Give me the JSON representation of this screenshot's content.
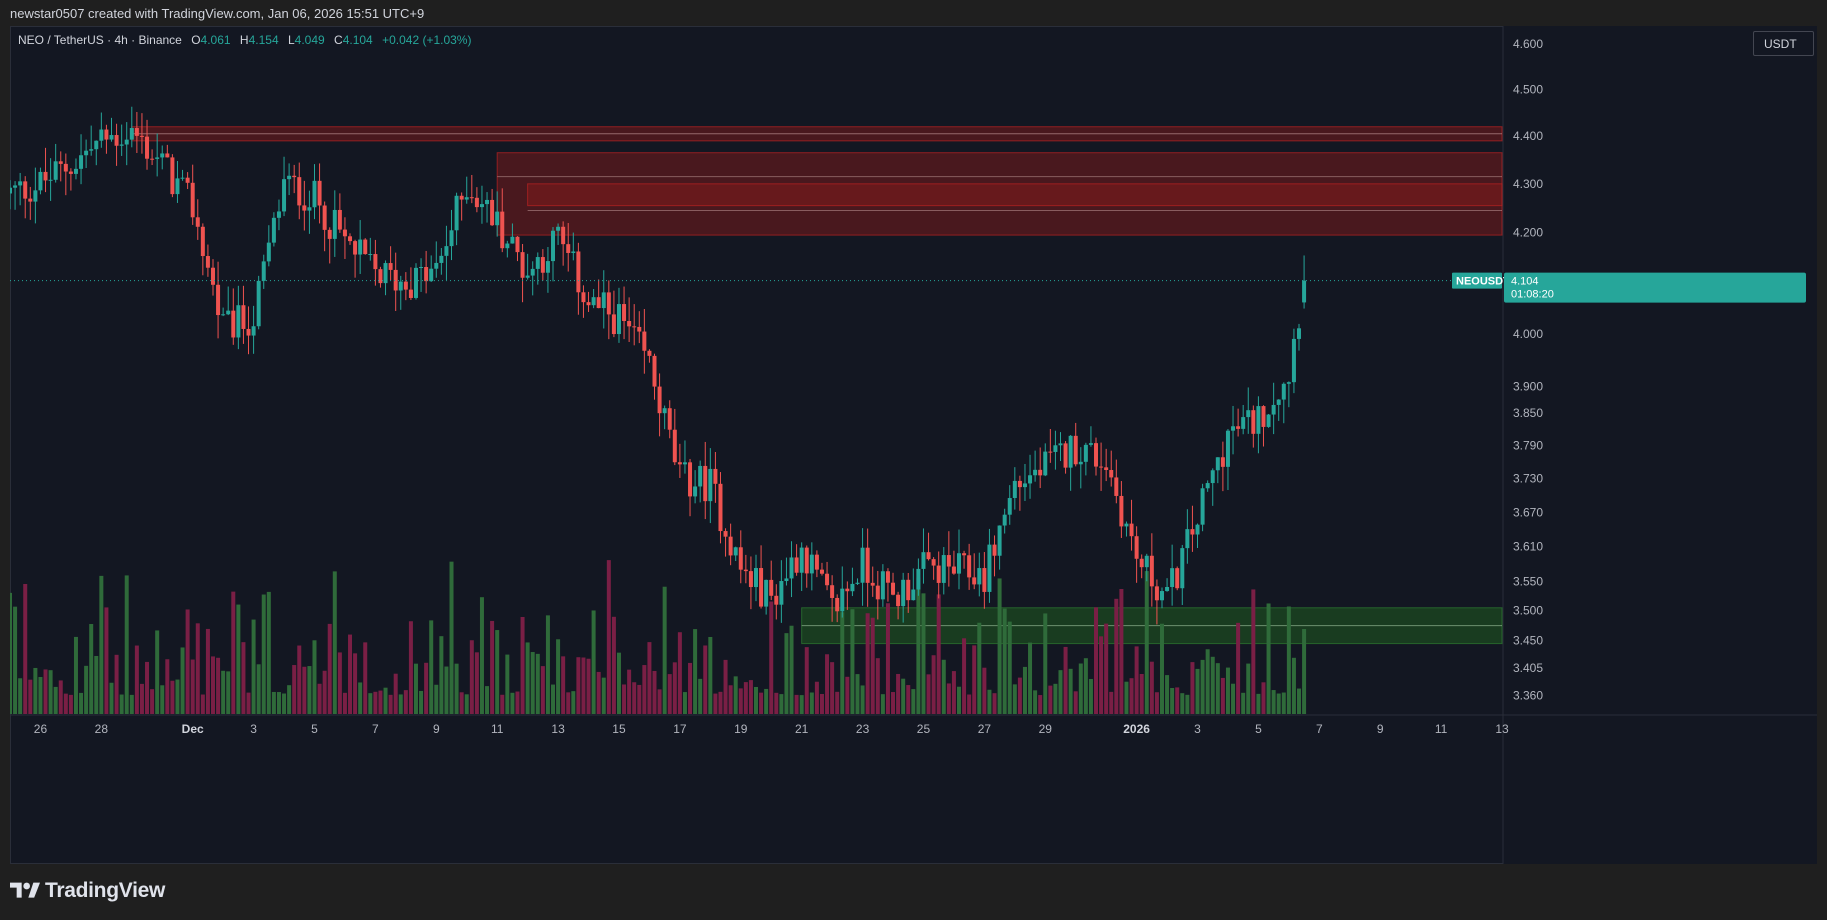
{
  "header": {
    "credit": "newstar0507 created with TradingView.com, Jan 06, 2026 15:51 UTC+9"
  },
  "legend": {
    "symbol": "NEO / TetherUS · 4h · Binance",
    "o_label": "O",
    "o_value": "4.061",
    "h_label": "H",
    "h_value": "4.154",
    "l_label": "L",
    "l_value": "4.049",
    "c_label": "C",
    "c_value": "4.104",
    "change": "+0.042 (+1.03%)"
  },
  "currency_button": "USDT",
  "price_tag": {
    "symbol": "NEOUSDT",
    "price": "4.104",
    "countdown": "01:08:20"
  },
  "footer": {
    "brand": "TradingView"
  },
  "colors": {
    "up": "#26a69a",
    "down": "#ef5350",
    "vol_up": "#2f6b3a",
    "vol_down": "#7a1f45",
    "zone_red": "#8b1a1a",
    "zone_green": "#1f5b1f",
    "last_price": "#26a69a"
  },
  "chart_data": {
    "type": "candlestick",
    "interval": "4h",
    "price_scale": "log",
    "ylim": [
      3.33,
      4.64
    ],
    "y_ticks": [
      "4.600",
      "4.500",
      "4.400",
      "4.300",
      "4.200",
      "4.000",
      "3.900",
      "3.850",
      "3.790",
      "3.730",
      "3.670",
      "3.610",
      "3.550",
      "3.500",
      "3.450",
      "3.405",
      "3.360"
    ],
    "x_ticks": [
      {
        "label": "26",
        "date": "2025-11-26"
      },
      {
        "label": "28",
        "date": "2025-11-28"
      },
      {
        "label": "Dec",
        "date": "2025-12-01"
      },
      {
        "label": "3",
        "date": "2025-12-03"
      },
      {
        "label": "5",
        "date": "2025-12-05"
      },
      {
        "label": "7",
        "date": "2025-12-07"
      },
      {
        "label": "9",
        "date": "2025-12-09"
      },
      {
        "label": "11",
        "date": "2025-12-11"
      },
      {
        "label": "13",
        "date": "2025-12-13"
      },
      {
        "label": "15",
        "date": "2025-12-15"
      },
      {
        "label": "17",
        "date": "2025-12-17"
      },
      {
        "label": "19",
        "date": "2025-12-19"
      },
      {
        "label": "21",
        "date": "2025-12-21"
      },
      {
        "label": "23",
        "date": "2025-12-23"
      },
      {
        "label": "25",
        "date": "2025-12-25"
      },
      {
        "label": "27",
        "date": "2025-12-27"
      },
      {
        "label": "29",
        "date": "2025-12-29"
      },
      {
        "label": "2026",
        "date": "2026-01-01"
      },
      {
        "label": "3",
        "date": "2026-01-03"
      },
      {
        "label": "5",
        "date": "2026-01-05"
      },
      {
        "label": "7",
        "date": "2026-01-07"
      },
      {
        "label": "9",
        "date": "2026-01-09"
      },
      {
        "label": "11",
        "date": "2026-01-11"
      },
      {
        "label": "13",
        "date": "2026-01-13"
      }
    ],
    "x_range": [
      "2025-11-25",
      "2026-01-13"
    ],
    "last_price": 4.104,
    "zones": [
      {
        "type": "resistance",
        "from": "2025-11-29",
        "y_bottom": 4.39,
        "y_top": 4.42
      },
      {
        "type": "resistance",
        "from": "2025-12-11",
        "y_bottom": 4.195,
        "y_top": 4.365
      },
      {
        "type": "resistance",
        "from": "2025-12-12",
        "y_bottom": 4.255,
        "y_top": 4.3
      },
      {
        "type": "support",
        "from": "2025-12-21",
        "y_bottom": 3.445,
        "y_top": 3.505
      }
    ],
    "anchors": [
      [
        "2025-11-25",
        4.28
      ],
      [
        "2025-11-26",
        4.3
      ],
      [
        "2025-11-27",
        4.34
      ],
      [
        "2025-11-28",
        4.39
      ],
      [
        "2025-11-29",
        4.41
      ],
      [
        "2025-11-30",
        4.34
      ],
      [
        "2025-12-01",
        4.25
      ],
      [
        "2025-12-02",
        4.01
      ],
      [
        "2025-12-03",
        4.03
      ],
      [
        "2025-12-04",
        4.3
      ],
      [
        "2025-12-05",
        4.27
      ],
      [
        "2025-12-06",
        4.18
      ],
      [
        "2025-12-07",
        4.12
      ],
      [
        "2025-12-08",
        4.1
      ],
      [
        "2025-12-09",
        4.12
      ],
      [
        "2025-12-10",
        4.3
      ],
      [
        "2025-12-11",
        4.22
      ],
      [
        "2025-12-12",
        4.12
      ],
      [
        "2025-12-13",
        4.19
      ],
      [
        "2025-12-14",
        4.06
      ],
      [
        "2025-12-15",
        4.03
      ],
      [
        "2025-12-16",
        3.94
      ],
      [
        "2025-12-17",
        3.73
      ],
      [
        "2025-12-18",
        3.72
      ],
      [
        "2025-12-19",
        3.57
      ],
      [
        "2025-12-20",
        3.52
      ],
      [
        "2025-12-21",
        3.61
      ],
      [
        "2025-12-22",
        3.5
      ],
      [
        "2025-12-23",
        3.58
      ],
      [
        "2025-12-24",
        3.52
      ],
      [
        "2025-12-25",
        3.57
      ],
      [
        "2025-12-26",
        3.57
      ],
      [
        "2025-12-27",
        3.56
      ],
      [
        "2025-12-28",
        3.72
      ],
      [
        "2025-12-29",
        3.75
      ],
      [
        "2025-12-30",
        3.79
      ],
      [
        "2025-12-31",
        3.76
      ],
      [
        "2026-01-01",
        3.59
      ],
      [
        "2026-01-02",
        3.52
      ],
      [
        "2026-01-03",
        3.66
      ],
      [
        "2026-01-04",
        3.81
      ],
      [
        "2026-01-05",
        3.84
      ],
      [
        "2026-01-06",
        3.93
      ],
      [
        "2026-01-06T12:00",
        4.104
      ]
    ]
  }
}
